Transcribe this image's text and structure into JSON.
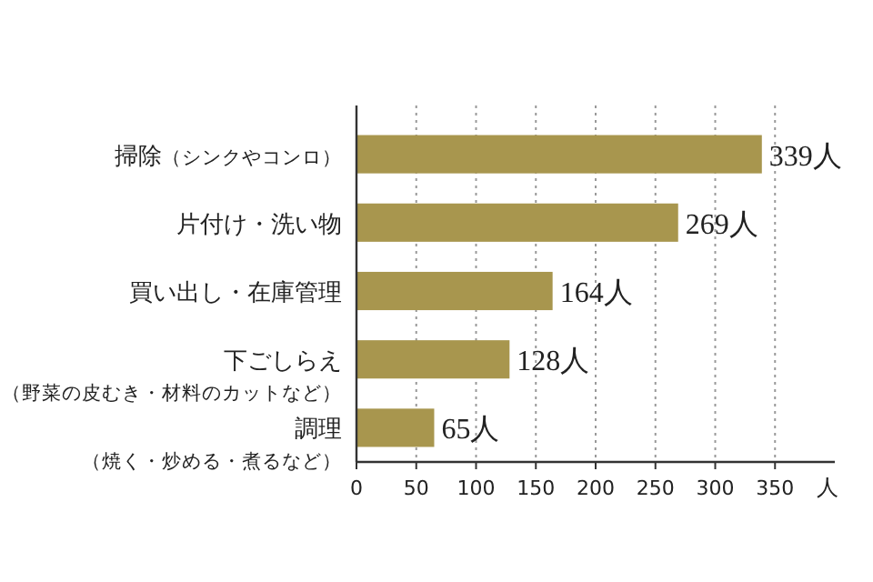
{
  "chart_data": {
    "type": "bar",
    "orientation": "horizontal",
    "categories": [
      "掃除（シンクやコンロ）",
      "片付け・洗い物",
      "買い出し・在庫管理",
      "下ごしらえ（野菜の皮むき・材料のカットなど）",
      "調理（焼く・炒める・煮るなど）"
    ],
    "values": [
      339,
      269,
      164,
      128,
      65
    ],
    "value_labels": [
      "339人",
      "269人",
      "164人",
      "128人",
      "65人"
    ],
    "color": "#a8964e",
    "xlabel": "人",
    "xlim": [
      0,
      400
    ],
    "xticks": [
      0,
      50,
      100,
      150,
      200,
      250,
      300,
      350
    ],
    "grid": "x"
  }
}
